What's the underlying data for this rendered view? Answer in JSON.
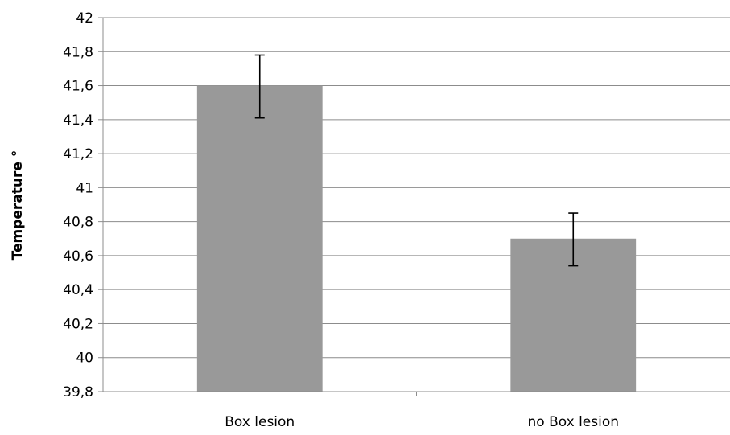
{
  "chart_data": {
    "type": "bar",
    "title": "",
    "xlabel": "",
    "ylabel": "Temperature °",
    "ylim": [
      39.8,
      42
    ],
    "yticks": [
      39.8,
      40,
      40.2,
      40.4,
      40.6,
      40.8,
      41,
      41.2,
      41.4,
      41.6,
      41.8,
      42
    ],
    "ytick_labels": [
      "39,8",
      "40",
      "40,2",
      "40,4",
      "40,6",
      "40,8",
      "41",
      "41,2",
      "41,4",
      "41,6",
      "41,8",
      "42"
    ],
    "grid": true,
    "legend": "none",
    "categories": [
      "Box lesion",
      "no Box lesion"
    ],
    "values": [
      41.6,
      40.7
    ],
    "error_bars": [
      {
        "low": 41.41,
        "high": 41.78
      },
      {
        "low": 40.54,
        "high": 40.85
      }
    ],
    "colors": {
      "bar": "#999999",
      "grid": "#8c8c8c",
      "axis": "#8c8c8c",
      "error_bar": "#000000"
    }
  }
}
